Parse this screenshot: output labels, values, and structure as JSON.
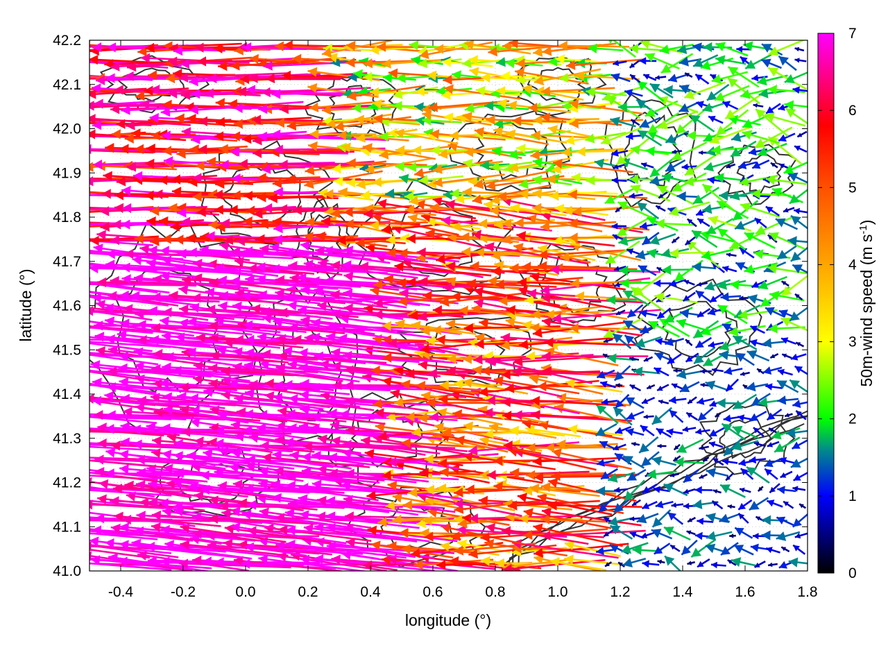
{
  "chart_data": {
    "type": "quiver",
    "xlabel": "longitude (°)",
    "ylabel": "latitude (°)",
    "xlim": [
      -0.5,
      1.8
    ],
    "ylim": [
      41.0,
      42.2
    ],
    "xticks": [
      -0.4,
      -0.2,
      0.0,
      0.2,
      0.4,
      0.6,
      0.8,
      1.0,
      1.2,
      1.4,
      1.6,
      1.8
    ],
    "xtick_labels": [
      "-0.4",
      "-0.2",
      "0.0",
      "0.2",
      "0.4",
      "0.6",
      "0.8",
      "1.0",
      "1.2",
      "1.4",
      "1.6",
      "1.8"
    ],
    "yticks": [
      41.0,
      41.1,
      41.2,
      41.3,
      41.4,
      41.5,
      41.6,
      41.7,
      41.8,
      41.9,
      42.0,
      42.1,
      42.2
    ],
    "ytick_labels": [
      "41.0",
      "41.1",
      "41.2",
      "41.3",
      "41.4",
      "41.5",
      "41.6",
      "41.7",
      "41.8",
      "41.9",
      "42.0",
      "42.1",
      "42.2"
    ],
    "grid": "dotted",
    "colorbar": {
      "label_main": "50m-wind speed (m s",
      "label_sup": "-1",
      "label_end": ")",
      "range": [
        0,
        7
      ],
      "ticks": [
        0,
        1,
        2,
        3,
        4,
        5,
        6,
        7
      ],
      "tick_labels": [
        "0",
        "1",
        "2",
        "3",
        "4",
        "5",
        "6",
        "7"
      ],
      "colormap": [
        {
          "value": 0,
          "color": "#000000"
        },
        {
          "value": 1,
          "color": "#0000ff"
        },
        {
          "value": 1.6,
          "color": "#008b8b"
        },
        {
          "value": 2,
          "color": "#00ff00"
        },
        {
          "value": 3,
          "color": "#ffff00"
        },
        {
          "value": 4,
          "color": "#ffa500"
        },
        {
          "value": 5,
          "color": "#ff5000"
        },
        {
          "value": 5.8,
          "color": "#ff0000"
        },
        {
          "value": 7,
          "color": "#ff00ff"
        }
      ]
    },
    "contour_color": "#333333",
    "wind_field_regions": [
      {
        "region": "west, lon -0.5 to 0.5, lat 41.0 to 41.75",
        "speed": 7,
        "direction": "toward west, slightly north"
      },
      {
        "region": "northwest, lon -0.5 to 0.3, lat 41.75 to 42.2",
        "speed": 6.5,
        "direction": "toward west"
      },
      {
        "region": "north-central, lon 0.3 to 1.0, lat 41.8 to 42.2",
        "speed": 3,
        "direction": "toward west"
      },
      {
        "region": "central, lon 0.5 to 1.3, lat 41.5 to 41.8",
        "speed": 5.5,
        "direction": "toward west"
      },
      {
        "region": "northeast, lon 1.2 to 1.8, lat 41.7 to 42.2",
        "speed": 1.5,
        "direction": "variable"
      },
      {
        "region": "southeast, lon 1.0 to 1.8, lat 41.0 to 41.5",
        "speed": 0.8,
        "direction": "variable"
      }
    ]
  }
}
